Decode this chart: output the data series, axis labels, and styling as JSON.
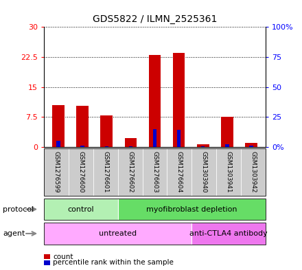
{
  "title": "GDS5822 / ILMN_2525361",
  "samples": [
    "GSM1276599",
    "GSM1276600",
    "GSM1276601",
    "GSM1276602",
    "GSM1276603",
    "GSM1276604",
    "GSM1303940",
    "GSM1303941",
    "GSM1303942"
  ],
  "counts": [
    10.5,
    10.3,
    8.0,
    2.2,
    23.0,
    23.5,
    0.8,
    7.5,
    1.1
  ],
  "percentile": [
    5.5,
    1.5,
    0.5,
    0.5,
    15.0,
    14.5,
    0.5,
    2.5,
    1.0
  ],
  "ylim_left": [
    0,
    30
  ],
  "ylim_right": [
    0,
    100
  ],
  "yticks_left": [
    0,
    7.5,
    15,
    22.5,
    30
  ],
  "yticks_right": [
    0,
    25,
    50,
    75,
    100
  ],
  "ytick_labels_left": [
    "0",
    "7.5",
    "15",
    "22.5",
    "30"
  ],
  "ytick_labels_right": [
    "0%",
    "25",
    "50",
    "75",
    "100%"
  ],
  "bar_color": "#cc0000",
  "blue_color": "#0000cc",
  "protocol_groups": [
    {
      "label": "control",
      "start": 0,
      "end": 3,
      "color": "#b3f0b3"
    },
    {
      "label": "myofibroblast depletion",
      "start": 3,
      "end": 9,
      "color": "#66dd66"
    }
  ],
  "agent_groups": [
    {
      "label": "untreated",
      "start": 0,
      "end": 6,
      "color": "#ffaaff"
    },
    {
      "label": "anti-CTLA4 antibody",
      "start": 6,
      "end": 9,
      "color": "#ee77ee"
    }
  ],
  "legend_count_label": "count",
  "legend_percentile_label": "percentile rank within the sample",
  "bar_width": 0.5,
  "bg_color": "#cccccc",
  "label_color": "#888888"
}
